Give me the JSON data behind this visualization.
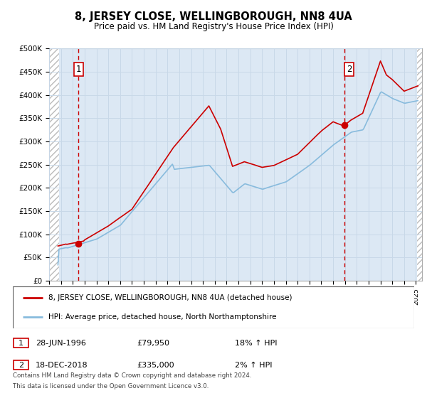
{
  "title": "8, JERSEY CLOSE, WELLINGBOROUGH, NN8 4UA",
  "subtitle": "Price paid vs. HM Land Registry's House Price Index (HPI)",
  "ylim": [
    0,
    500000
  ],
  "xlim_start": 1994.0,
  "xlim_end": 2025.5,
  "sale1_date": 1996.49,
  "sale1_price": 79950,
  "sale1_label": "28-JUN-1996",
  "sale1_amt": "£79,950",
  "sale1_pct": "18%",
  "sale2_date": 2018.958,
  "sale2_price": 335000,
  "sale2_label": "18-DEC-2018",
  "sale2_amt": "£335,000",
  "sale2_pct": "2%",
  "legend_line1": "8, JERSEY CLOSE, WELLINGBOROUGH, NN8 4UA (detached house)",
  "legend_line2": "HPI: Average price, detached house, North Northamptonshire",
  "footnote1": "Contains HM Land Registry data © Crown copyright and database right 2024.",
  "footnote2": "This data is licensed under the Open Government Licence v3.0.",
  "red_color": "#cc0000",
  "blue_color": "#88bbdd",
  "hatch_color": "#bbbbbb",
  "grid_color": "#c8d8e8",
  "bg_color": "#dce8f4",
  "yticks": [
    0,
    50000,
    100000,
    150000,
    200000,
    250000,
    300000,
    350000,
    400000,
    450000,
    500000
  ],
  "ytick_labels": [
    "£0",
    "£50K",
    "£100K",
    "£150K",
    "£200K",
    "£250K",
    "£300K",
    "£350K",
    "£400K",
    "£450K",
    "£500K"
  ]
}
